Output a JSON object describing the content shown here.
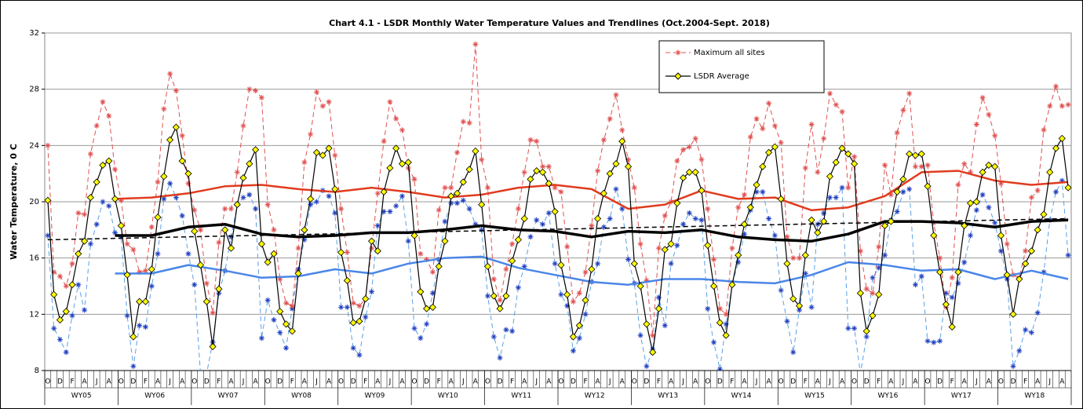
{
  "chart_data": {
    "type": "line",
    "title": "Chart 4.1 - LSDR Monthly Water Temperature Values and Trendlines (Oct.2004-Sept. 2018)",
    "y_label": "Water Temperature, 0 C",
    "ylim": [
      8,
      32
    ],
    "yticks": [
      8,
      12,
      16,
      20,
      24,
      28,
      32
    ],
    "grid": true,
    "categories": [
      "O",
      null,
      "D",
      null,
      "F",
      null,
      "A",
      null,
      "J",
      null,
      "A",
      null,
      "O",
      null,
      "D",
      null,
      "F",
      null,
      "A",
      null,
      "J",
      null,
      "A",
      null,
      "O",
      null,
      "D",
      null,
      "F",
      null,
      "A",
      null,
      "J",
      null,
      "A",
      null,
      "O",
      null,
      "D",
      null,
      "F",
      null,
      "A",
      null,
      "J",
      null,
      "A",
      null,
      "O",
      null,
      "D",
      null,
      "F",
      null,
      "A",
      null,
      "J",
      null,
      "A",
      null,
      "O",
      null,
      "D",
      null,
      "F",
      null,
      "A",
      null,
      "J",
      null,
      "A",
      null,
      "O",
      null,
      "D",
      null,
      "F",
      null,
      "A",
      null,
      "J",
      null,
      "A",
      null,
      "O",
      null,
      "D",
      null,
      "F",
      null,
      "A",
      null,
      "J",
      null,
      "A",
      null,
      "O",
      null,
      "D",
      null,
      "F",
      null,
      "A",
      null,
      "J",
      null,
      "A",
      null,
      "O",
      null,
      "D",
      null,
      "F",
      null,
      "A",
      null,
      "J",
      null,
      "A",
      null,
      "O",
      null,
      "D",
      null,
      "F",
      null,
      "A",
      null,
      "J",
      null,
      "A",
      null,
      "O",
      null,
      "D",
      null,
      "F",
      null,
      "A",
      null,
      "J",
      null,
      "A",
      null,
      "O",
      null,
      "D",
      null,
      "F",
      null,
      "A",
      null,
      "J",
      null,
      "A",
      null,
      "O",
      null,
      "D",
      null,
      "F",
      null,
      "A",
      null,
      "J",
      null,
      "A",
      null
    ],
    "groups": [
      "WY05",
      "WY06",
      "WY07",
      "WY08",
      "WY09",
      "WY10",
      "WY11",
      "WY12",
      "WY13",
      "WY14",
      "WY15",
      "WY16",
      "WY17",
      "WY18"
    ],
    "series": [
      {
        "color": "#5aa0e8",
        "dash": true,
        "marker": "star",
        "marker_color": "#1f3fbf",
        "width": 1,
        "values": [
          17.6,
          11.0,
          10.2,
          9.3,
          11.9,
          14.1,
          12.3,
          17.0,
          18.4,
          20.0,
          19.7,
          17.8,
          17.5,
          11.9,
          8.3,
          11.2,
          11.1,
          14.0,
          16.3,
          20.2,
          21.3,
          20.3,
          19.0,
          16.3,
          14.1,
          7.8,
          7.8,
          10.0,
          13.5,
          15.1,
          17.5,
          19.8,
          20.3,
          20.5,
          19.5,
          10.3,
          13.0,
          11.6,
          10.7,
          9.6,
          12.4,
          15.2,
          17.3,
          19.8,
          20.0,
          20.8,
          20.4,
          19.2,
          12.5,
          12.5,
          9.6,
          9.1,
          11.8,
          13.6,
          18.3,
          19.3,
          19.3,
          19.7,
          20.4,
          17.2,
          11.0,
          10.3,
          11.3,
          13.5,
          15.9,
          18.6,
          19.9,
          19.9,
          20.1,
          19.5,
          18.4,
          18.0,
          13.3,
          10.4,
          8.9,
          10.9,
          10.8,
          13.9,
          15.4,
          17.5,
          18.7,
          18.4,
          19.2,
          15.6,
          13.4,
          12.6,
          9.4,
          10.3,
          12.0,
          14.3,
          15.6,
          18.2,
          18.8,
          20.9,
          19.5,
          15.9,
          14.2,
          10.5,
          8.3,
          9.5,
          13.2,
          11.2,
          15.6,
          16.9,
          18.4,
          19.2,
          18.8,
          18.7,
          12.4,
          10.0,
          8.1,
          11.3,
          14.1,
          15.7,
          17.7,
          19.4,
          20.7,
          20.7,
          18.8,
          17.6,
          13.7,
          11.5,
          9.3,
          12.3,
          14.9,
          12.5,
          18.4,
          19.2,
          20.3,
          20.3,
          21.0,
          11.0,
          11.0,
          7.8,
          10.4,
          14.6,
          15.3,
          16.2,
          18.7,
          19.3,
          20.7,
          20.9,
          14.1,
          14.7,
          10.1,
          10.0,
          10.1,
          13.5,
          13.2,
          14.2,
          15.7,
          17.6,
          19.4,
          20.5,
          19.6,
          18.5,
          16.5,
          14.5,
          8.3,
          9.4,
          10.9,
          10.7,
          12.1,
          15.0,
          18.7,
          20.7,
          21.5,
          16.2
        ]
      },
      {
        "name": "Maximum all sites",
        "color": "#e05050",
        "dash": true,
        "marker": "star",
        "marker_color": "#e05050",
        "width": 1,
        "values": [
          24.0,
          15.0,
          14.7,
          14.0,
          15.6,
          19.2,
          19.1,
          23.4,
          25.4,
          27.1,
          26.1,
          22.3,
          20.1,
          17.0,
          16.6,
          15.0,
          15.1,
          18.2,
          21.4,
          26.6,
          29.1,
          27.9,
          24.7,
          21.3,
          19.4,
          18.0,
          14.2,
          12.1,
          17.1,
          19.5,
          19.5,
          22.1,
          25.4,
          28.0,
          27.9,
          27.4,
          19.8,
          18.0,
          14.5,
          12.8,
          12.6,
          16.7,
          22.8,
          24.8,
          27.8,
          26.8,
          27.1,
          23.3,
          19.5,
          16.4,
          12.8,
          12.6,
          13.1,
          16.7,
          20.6,
          24.3,
          27.1,
          25.9,
          25.1,
          22.4,
          21.6,
          16.3,
          15.9,
          15.0,
          19.4,
          21.0,
          21.0,
          23.5,
          25.7,
          25.6,
          31.2,
          23.0,
          21.0,
          14.5,
          13.0,
          15.2,
          17.0,
          19.5,
          22.1,
          24.4,
          24.3,
          22.5,
          22.5,
          21.0,
          20.7,
          16.8,
          12.9,
          13.5,
          15.0,
          18.3,
          22.2,
          24.4,
          25.9,
          27.6,
          25.1,
          23.0,
          21.0,
          17.0,
          14.4,
          10.5,
          16.7,
          19.0,
          20.0,
          22.9,
          23.7,
          23.9,
          24.5,
          23.0,
          19.5,
          15.9,
          12.4,
          12.0,
          16.7,
          19.6,
          20.5,
          24.6,
          25.9,
          25.2,
          27.0,
          25.4,
          24.2,
          17.5,
          16.0,
          16.0,
          22.4,
          25.5,
          22.1,
          24.5,
          27.7,
          26.9,
          26.4,
          21.0,
          23.2,
          16.5,
          13.8,
          13.5,
          16.8,
          22.6,
          20.5,
          24.9,
          26.5,
          27.7,
          22.5,
          22.5,
          22.6,
          18.5,
          16.0,
          12.5,
          14.6,
          21.2,
          22.7,
          22.1,
          25.5,
          27.4,
          26.2,
          24.7,
          21.3,
          17.0,
          14.8,
          14.6,
          16.5,
          20.3,
          20.8,
          25.1,
          26.8,
          28.2,
          26.8,
          26.9
        ]
      },
      {
        "color": "#e03c1e",
        "width": 2.5,
        "x": [
          11,
          17,
          23,
          29,
          35,
          41,
          47,
          53,
          59,
          65,
          71,
          77,
          83,
          89,
          95,
          101,
          107,
          113,
          119,
          125,
          131,
          137,
          143,
          149,
          155,
          161,
          167
        ],
        "values": [
          20.2,
          20.3,
          20.6,
          21.1,
          21.2,
          20.9,
          20.7,
          21.0,
          20.7,
          20.3,
          20.5,
          21.0,
          21.2,
          20.9,
          19.5,
          19.8,
          20.8,
          20.2,
          20.3,
          19.4,
          19.6,
          20.4,
          22.1,
          22.2,
          21.5,
          21.2,
          21.4
        ]
      },
      {
        "color": "#4a86e8",
        "width": 2.5,
        "x": [
          11,
          17,
          23,
          29,
          35,
          41,
          47,
          53,
          59,
          65,
          71,
          77,
          83,
          89,
          95,
          101,
          107,
          113,
          119,
          125,
          131,
          137,
          143,
          149,
          155,
          161,
          167
        ],
        "values": [
          14.9,
          14.9,
          15.5,
          15.1,
          14.6,
          14.7,
          15.2,
          14.9,
          15.6,
          16.0,
          16.1,
          15.3,
          14.8,
          14.3,
          14.1,
          14.5,
          14.5,
          14.3,
          14.2,
          14.8,
          15.7,
          15.5,
          15.1,
          15.2,
          14.5,
          15.1,
          14.5
        ]
      },
      {
        "color": "#000000",
        "width": 3.5,
        "x": [
          11,
          17,
          23,
          29,
          35,
          41,
          47,
          53,
          59,
          65,
          71,
          77,
          83,
          89,
          95,
          101,
          107,
          113,
          119,
          125,
          131,
          137,
          143,
          149,
          155,
          161,
          167
        ],
        "values": [
          17.6,
          17.6,
          18.2,
          18.4,
          17.7,
          17.5,
          17.6,
          17.8,
          17.8,
          18.0,
          18.3,
          18.0,
          17.9,
          17.5,
          17.9,
          17.8,
          18.0,
          17.5,
          17.3,
          17.2,
          17.7,
          18.6,
          18.6,
          18.5,
          18.2,
          18.6,
          18.7
        ]
      },
      {
        "color": "#000000",
        "dash": true,
        "width": 1.5,
        "x": [
          0,
          167
        ],
        "values": [
          17.3,
          18.8
        ]
      },
      {
        "name": "LSDR Average",
        "color": "#000000",
        "marker": "diamond",
        "marker_color": "#ffff00",
        "width": 1.2,
        "values": [
          20.1,
          13.4,
          11.6,
          12.2,
          14.1,
          16.3,
          17.2,
          20.3,
          21.4,
          22.6,
          22.9,
          20.2,
          18.3,
          14.8,
          10.4,
          12.9,
          12.9,
          15.2,
          18.9,
          21.8,
          24.4,
          25.3,
          22.9,
          22.0,
          17.9,
          15.5,
          12.9,
          9.7,
          13.8,
          18.0,
          16.7,
          19.8,
          21.7,
          22.7,
          23.7,
          17.0,
          15.7,
          16.3,
          12.2,
          11.3,
          10.8,
          14.9,
          18.0,
          20.2,
          23.5,
          23.3,
          23.8,
          20.9,
          16.4,
          14.4,
          11.4,
          11.5,
          13.1,
          17.2,
          16.5,
          20.7,
          22.4,
          23.8,
          22.7,
          22.8,
          17.6,
          13.6,
          12.4,
          12.5,
          15.4,
          17.2,
          20.4,
          20.6,
          21.4,
          22.3,
          23.6,
          19.8,
          15.4,
          13.3,
          12.4,
          13.3,
          15.8,
          17.3,
          18.8,
          21.6,
          22.2,
          22.1,
          21.3,
          19.3,
          15.5,
          13.4,
          10.4,
          11.2,
          13.0,
          15.2,
          18.8,
          20.6,
          22.0,
          22.7,
          24.3,
          22.5,
          15.6,
          14.0,
          11.3,
          9.3,
          12.4,
          16.6,
          17.0,
          19.9,
          21.7,
          22.1,
          22.1,
          20.8,
          16.9,
          14.0,
          11.4,
          10.5,
          14.1,
          16.2,
          18.4,
          19.6,
          21.2,
          22.5,
          23.5,
          23.9,
          20.2,
          15.6,
          13.1,
          12.6,
          16.2,
          18.7,
          17.8,
          18.6,
          21.8,
          22.8,
          23.8,
          23.4,
          22.7,
          13.5,
          10.8,
          11.9,
          13.4,
          18.3,
          18.6,
          20.7,
          21.6,
          23.4,
          23.3,
          23.4,
          21.1,
          17.6,
          15.0,
          12.7,
          11.1,
          15.0,
          18.3,
          19.9,
          20.0,
          22.1,
          22.6,
          22.5,
          17.6,
          14.8,
          12.0,
          14.5,
          15.6,
          16.5,
          18.0,
          19.1,
          22.1,
          23.8,
          24.5,
          21.0
        ]
      }
    ]
  }
}
